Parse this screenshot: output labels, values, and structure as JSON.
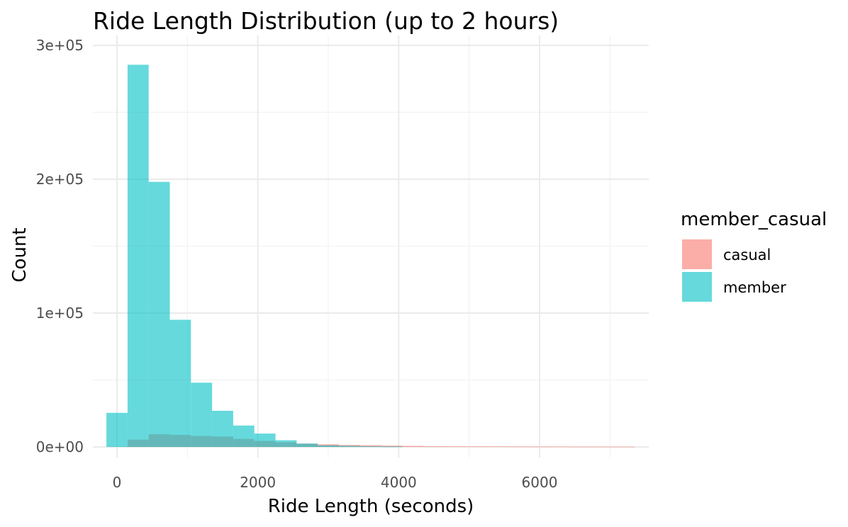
{
  "chart_data": {
    "type": "bar",
    "title": "Ride Length Distribution (up to 2 hours)",
    "xlabel": "Ride Length (seconds)",
    "ylabel": "Count",
    "xlim": [
      -150,
      7350
    ],
    "ylim": [
      0,
      300000
    ],
    "x_ticks": [
      0,
      2000,
      4000,
      6000
    ],
    "x_tick_labels": [
      "0",
      "2000",
      "4000",
      "6000"
    ],
    "y_ticks": [
      0,
      100000,
      200000,
      300000
    ],
    "y_tick_labels": [
      "0e+00",
      "1e+05",
      "2e+05",
      "3e+05"
    ],
    "bin_width": 300,
    "grid": true,
    "legend": {
      "title": "member_casual",
      "placement": "right"
    },
    "series": [
      {
        "name": "casual",
        "color": "#F8766D",
        "bins": [
          {
            "x0": 150,
            "x1": 450,
            "y": 5500
          },
          {
            "x0": 450,
            "x1": 750,
            "y": 9500
          },
          {
            "x0": 750,
            "x1": 1050,
            "y": 9000
          },
          {
            "x0": 1050,
            "x1": 1350,
            "y": 8200
          },
          {
            "x0": 1350,
            "x1": 1650,
            "y": 7800
          },
          {
            "x0": 1650,
            "x1": 1950,
            "y": 6000
          },
          {
            "x0": 1950,
            "x1": 2250,
            "y": 4500
          },
          {
            "x0": 2250,
            "x1": 2550,
            "y": 3500
          },
          {
            "x0": 2550,
            "x1": 2850,
            "y": 2500
          },
          {
            "x0": 2850,
            "x1": 3150,
            "y": 2000
          },
          {
            "x0": 3150,
            "x1": 3450,
            "y": 1500
          },
          {
            "x0": 3450,
            "x1": 3750,
            "y": 1300
          },
          {
            "x0": 3750,
            "x1": 4050,
            "y": 1000
          },
          {
            "x0": 4050,
            "x1": 4350,
            "y": 800
          },
          {
            "x0": 4350,
            "x1": 4650,
            "y": 600
          },
          {
            "x0": 4650,
            "x1": 4950,
            "y": 500
          },
          {
            "x0": 4950,
            "x1": 5250,
            "y": 450
          },
          {
            "x0": 5250,
            "x1": 5550,
            "y": 400
          },
          {
            "x0": 5550,
            "x1": 5850,
            "y": 350
          },
          {
            "x0": 5850,
            "x1": 6150,
            "y": 300
          },
          {
            "x0": 6150,
            "x1": 6450,
            "y": 280
          },
          {
            "x0": 6450,
            "x1": 6750,
            "y": 250
          },
          {
            "x0": 6750,
            "x1": 7050,
            "y": 230
          },
          {
            "x0": 7050,
            "x1": 7350,
            "y": 200
          }
        ]
      },
      {
        "name": "member",
        "color": "#00BFC4",
        "bins": [
          {
            "x0": -150,
            "x1": 150,
            "y": 25500
          },
          {
            "x0": 150,
            "x1": 450,
            "y": 285500
          },
          {
            "x0": 450,
            "x1": 750,
            "y": 198000
          },
          {
            "x0": 750,
            "x1": 1050,
            "y": 95000
          },
          {
            "x0": 1050,
            "x1": 1350,
            "y": 48000
          },
          {
            "x0": 1350,
            "x1": 1650,
            "y": 27000
          },
          {
            "x0": 1650,
            "x1": 1950,
            "y": 16000
          },
          {
            "x0": 1950,
            "x1": 2250,
            "y": 10000
          },
          {
            "x0": 2250,
            "x1": 2550,
            "y": 5000
          },
          {
            "x0": 2550,
            "x1": 2850,
            "y": 2500
          },
          {
            "x0": 2850,
            "x1": 3150,
            "y": 1200
          },
          {
            "x0": 3150,
            "x1": 3450,
            "y": 800
          },
          {
            "x0": 3450,
            "x1": 3750,
            "y": 500
          },
          {
            "x0": 3750,
            "x1": 4050,
            "y": 300
          }
        ]
      }
    ]
  }
}
